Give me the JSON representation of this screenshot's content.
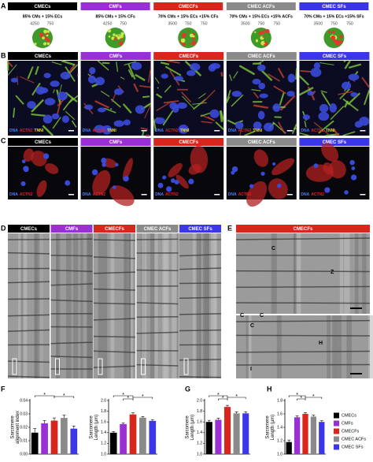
{
  "figure": {
    "groups": [
      "CMECs",
      "CMFs",
      "CMECFs",
      "CMEC ACFs",
      "CMEC SFs"
    ],
    "group_colors": [
      "#000000",
      "#9a2fd6",
      "#d8261c",
      "#8a8a8a",
      "#3b36e8"
    ],
    "panel_a": {
      "letter": "A",
      "ratios": [
        "85% CMs + 15% ECs",
        "85% CMs + 15% CFs",
        "70% CMs + 15% ECs +15% CFs",
        "70% CMs + 15% ECs +15% ACFs",
        "70% CMs + 15% ECs +15% SFs"
      ],
      "counts": [
        [
          4250,
          750
        ],
        [
          4250,
          750
        ],
        [
          3500,
          750,
          750
        ],
        [
          3500,
          750,
          750
        ],
        [
          3500,
          750,
          750
        ]
      ]
    },
    "panel_b": {
      "letter": "B",
      "stains": [
        {
          "text": "DNA",
          "color": "#4f7bff"
        },
        {
          "text": "ACTN2",
          "color": "#e02020"
        },
        {
          "text": "TNNI",
          "color": "#e6e020"
        }
      ]
    },
    "panel_c": {
      "letter": "C",
      "stains": [
        {
          "text": "DNA",
          "color": "#4f7bff"
        },
        {
          "text": "ACTN2",
          "color": "#e02020"
        }
      ]
    },
    "panel_d": {
      "letter": "D"
    },
    "panel_e": {
      "letter": "E",
      "title": "CMECFs",
      "labels": [
        "C",
        "C",
        "Z",
        "C",
        "C",
        "H",
        "I"
      ]
    },
    "panel_f": {
      "letter": "F"
    },
    "panel_g": {
      "letter": "G"
    },
    "panel_h": {
      "letter": "H"
    }
  },
  "chart_data": [
    {
      "type": "bar",
      "ylabel": [
        "Sarcomere",
        "alignment index"
      ],
      "categories": [
        null,
        null,
        null,
        null,
        null
      ],
      "values": [
        0.016,
        0.023,
        0.025,
        0.027,
        0.019
      ],
      "errors": [
        0.003,
        0.002,
        0.002,
        0.002,
        0.002
      ],
      "colors": [
        "#000000",
        "#9a2fd6",
        "#d8261c",
        "#8a8a8a",
        "#3b36e8"
      ],
      "ylim": [
        0,
        0.04
      ],
      "yticks": [
        {
          "value": 0,
          "label": "0.00"
        },
        0.01,
        0.02,
        0.03,
        0.04
      ],
      "significance": [
        "*",
        "*"
      ]
    },
    {
      "type": "bar",
      "ylabel": [
        "Sarcomere",
        "Length (μm)"
      ],
      "categories": [
        null,
        null,
        null,
        null,
        null
      ],
      "values": [
        1.4,
        1.56,
        1.74,
        1.68,
        1.62
      ],
      "errors": [
        0.02,
        0.02,
        0.03,
        0.02,
        0.02
      ],
      "colors": [
        "#000000",
        "#9a2fd6",
        "#d8261c",
        "#8a8a8a",
        "#3b36e8"
      ],
      "ylim": [
        1.0,
        2.0
      ],
      "yticks": [
        {
          "value": 1,
          "label": "1.0"
        },
        1.2,
        1.4,
        1.6,
        1.8,
        {
          "value": 2,
          "label": "2.0"
        }
      ],
      "significance": [
        "*",
        "*",
        "*"
      ]
    },
    {
      "type": "bar",
      "ylabel": [
        "Sarcomere",
        "Length (μm)"
      ],
      "categories": [
        null,
        null,
        null,
        null,
        null
      ],
      "values": [
        1.6,
        1.64,
        1.88,
        1.76,
        1.76
      ],
      "errors": [
        0.03,
        0.03,
        0.03,
        0.03,
        0.03
      ],
      "colors": [
        "#000000",
        "#9a2fd6",
        "#d8261c",
        "#8a8a8a",
        "#3b36e8"
      ],
      "ylim": [
        1.0,
        2.0
      ],
      "yticks": [
        {
          "value": 1,
          "label": "1.0"
        },
        1.2,
        1.4,
        1.6,
        1.8,
        {
          "value": 2,
          "label": "2.0"
        }
      ],
      "significance": [
        "*",
        "*",
        "*"
      ]
    },
    {
      "type": "bar",
      "ylabel": [
        "Sarcomere",
        "Length (μm)"
      ],
      "categories": [
        null,
        null,
        null,
        null,
        null
      ],
      "values": [
        1.18,
        1.55,
        1.6,
        1.56,
        1.48
      ],
      "errors": [
        0.03,
        0.02,
        0.02,
        0.02,
        0.02
      ],
      "colors": [
        "#000000",
        "#9a2fd6",
        "#d8261c",
        "#8a8a8a",
        "#3b36e8"
      ],
      "ylim": [
        1.0,
        1.8
      ],
      "yticks": [
        {
          "value": 1,
          "label": "1.0"
        },
        1.2,
        1.4,
        1.6,
        1.8
      ],
      "significance": [
        "*",
        "*",
        "*"
      ]
    }
  ]
}
